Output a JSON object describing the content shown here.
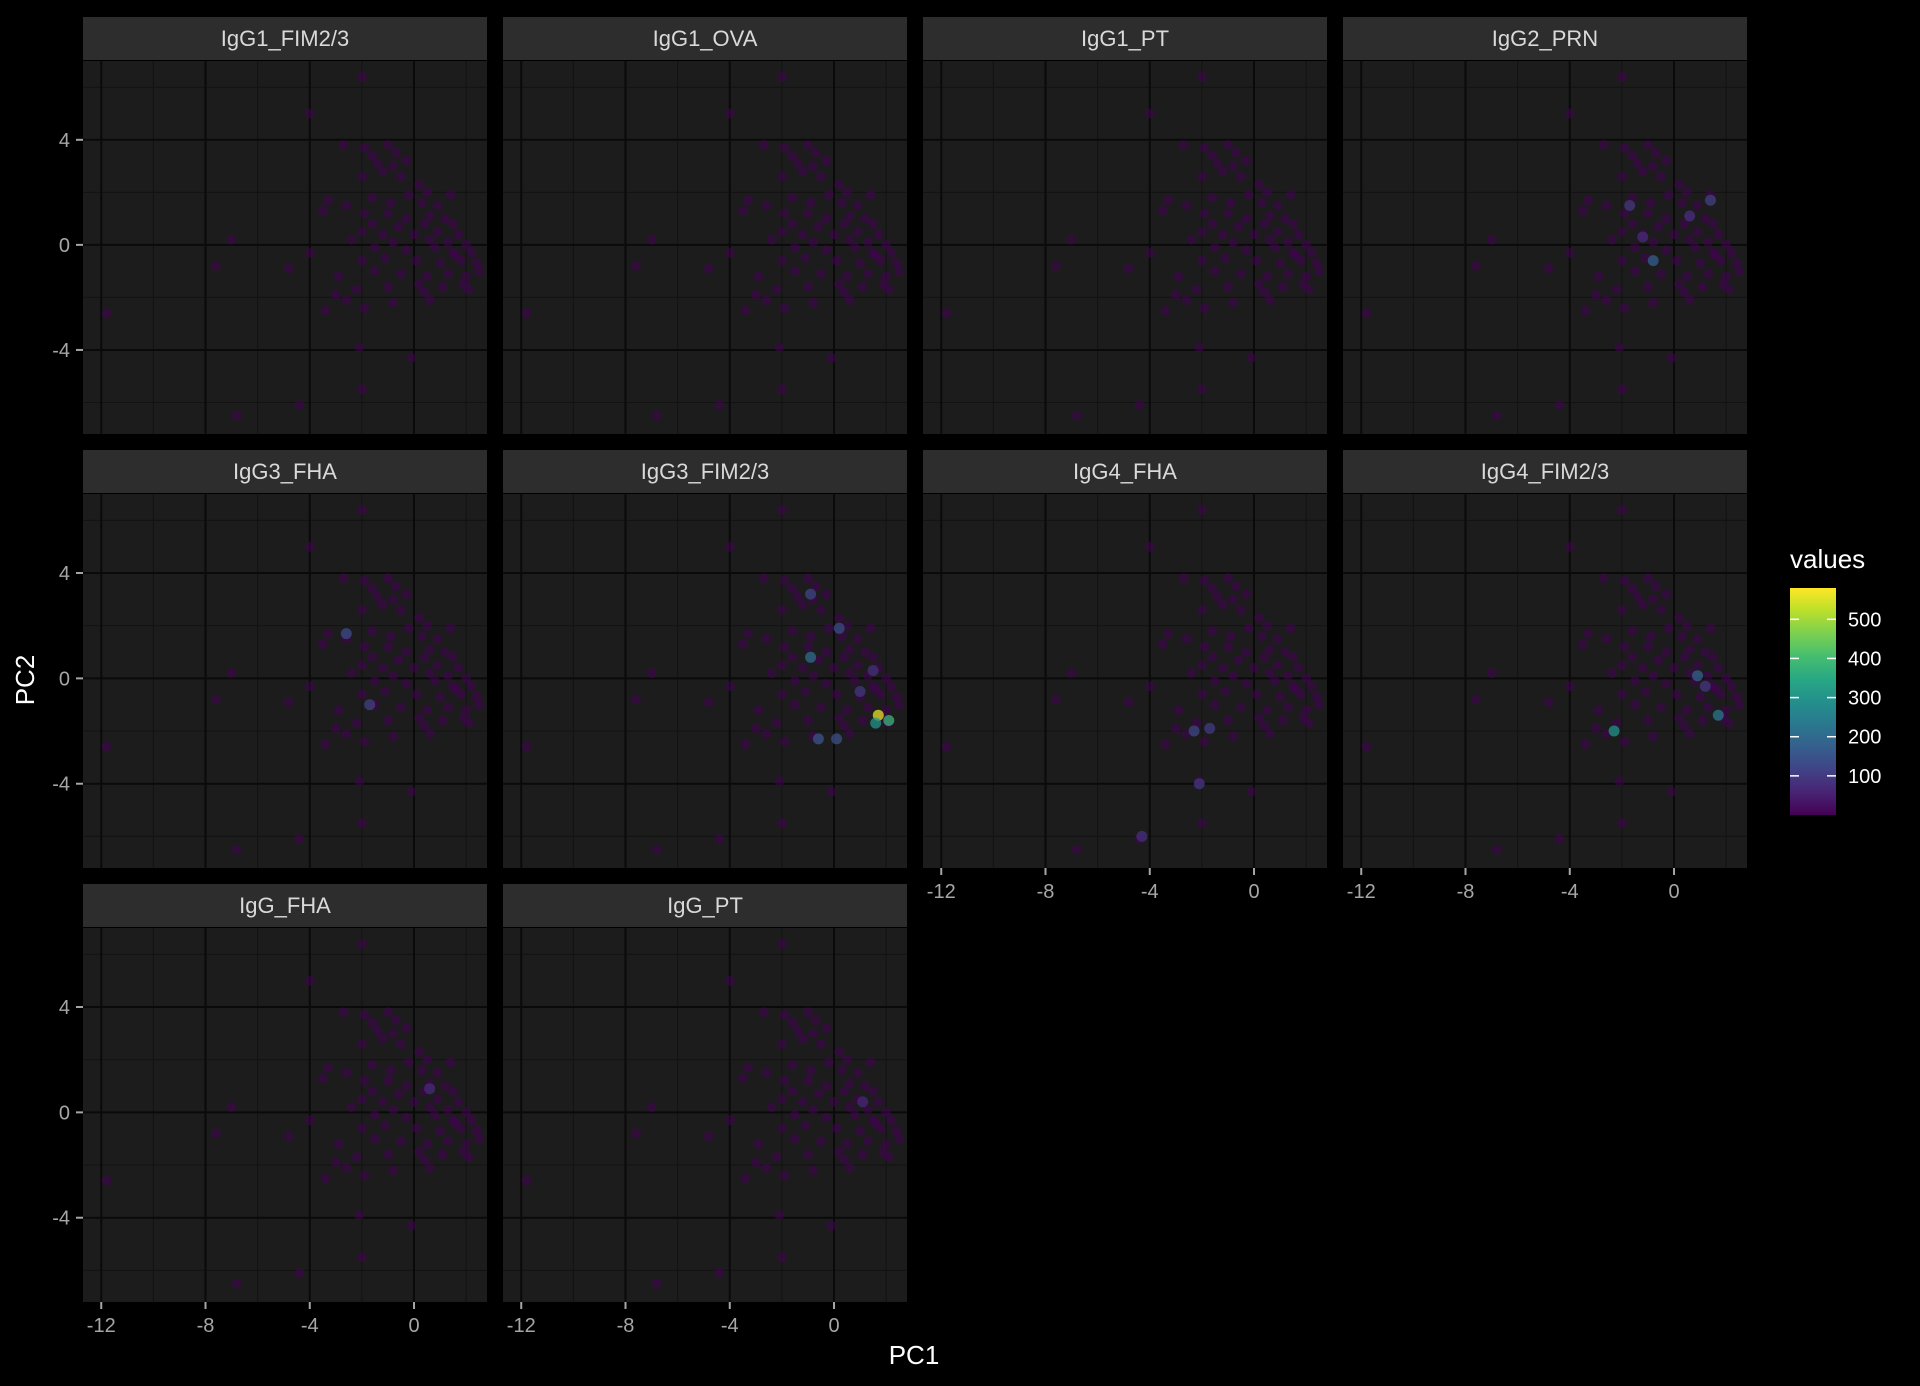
{
  "chart_data": {
    "type": "scatter",
    "faceted": true,
    "xlabel": "PC1",
    "ylabel": "PC2",
    "xlim": [
      -12.7,
      2.8
    ],
    "ylim": [
      -7.2,
      7.0
    ],
    "x_ticks": [
      -12,
      -8,
      -4,
      0
    ],
    "y_ticks": [
      -4,
      0,
      4
    ],
    "x_tick_labels": [
      "-12",
      "-8",
      "-4",
      "0"
    ],
    "y_tick_labels": [
      "-4",
      "0",
      "4"
    ],
    "grid": true,
    "legend": {
      "title": "values",
      "position": "right",
      "ticks": [
        100,
        200,
        300,
        400,
        500
      ],
      "tick_labels": [
        "100",
        "200",
        "300",
        "400",
        "500"
      ],
      "range": [
        0,
        580
      ],
      "colormap": "viridis"
    },
    "colors": {
      "background": "#000000",
      "panel": "#1c1c1c",
      "strip": "#2d2d2d",
      "grid_major": "#0a0a0a",
      "grid_minor": "#121212",
      "text": "#ffffff",
      "tick_text": "#a6a6a6",
      "strip_text": "#d9d9d9"
    },
    "point_alpha": 0.55,
    "base_points": [
      [
        -2.0,
        6.4
      ],
      [
        -4.0,
        5.0
      ],
      [
        -2.7,
        3.8
      ],
      [
        -1.9,
        3.7
      ],
      [
        -1.0,
        3.8
      ],
      [
        -1.6,
        3.4
      ],
      [
        -1.4,
        3.1
      ],
      [
        -0.7,
        3.5
      ],
      [
        -0.3,
        3.2
      ],
      [
        -0.8,
        3.0
      ],
      [
        -1.2,
        2.8
      ],
      [
        -2.0,
        2.6
      ],
      [
        -0.5,
        2.6
      ],
      [
        0.2,
        2.3
      ],
      [
        0.5,
        2.0
      ],
      [
        -0.2,
        1.9
      ],
      [
        -1.6,
        1.8
      ],
      [
        -3.3,
        1.7
      ],
      [
        -2.6,
        1.5
      ],
      [
        -0.9,
        1.6
      ],
      [
        0.3,
        1.6
      ],
      [
        0.9,
        1.5
      ],
      [
        -3.5,
        1.3
      ],
      [
        -1.9,
        1.2
      ],
      [
        -1.0,
        1.2
      ],
      [
        -0.3,
        1.0
      ],
      [
        0.6,
        1.1
      ],
      [
        1.2,
        1.0
      ],
      [
        -1.6,
        0.8
      ],
      [
        -0.6,
        0.7
      ],
      [
        0.4,
        0.8
      ],
      [
        1.5,
        0.8
      ],
      [
        -7.0,
        0.2
      ],
      [
        -2.0,
        0.5
      ],
      [
        -1.2,
        0.4
      ],
      [
        0.0,
        0.4
      ],
      [
        0.9,
        0.5
      ],
      [
        1.7,
        0.4
      ],
      [
        -2.4,
        0.2
      ],
      [
        -0.8,
        0.1
      ],
      [
        0.6,
        0.2
      ],
      [
        1.3,
        0.1
      ],
      [
        2.0,
        0.0
      ],
      [
        -1.5,
        -0.1
      ],
      [
        -0.3,
        -0.2
      ],
      [
        0.8,
        -0.1
      ],
      [
        1.5,
        -0.3
      ],
      [
        2.2,
        -0.3
      ],
      [
        -7.6,
        -0.8
      ],
      [
        -4.8,
        -0.9
      ],
      [
        -4.0,
        -0.3
      ],
      [
        -2.0,
        -0.6
      ],
      [
        -1.1,
        -0.5
      ],
      [
        0.1,
        -0.6
      ],
      [
        1.0,
        -0.7
      ],
      [
        1.8,
        -0.6
      ],
      [
        2.4,
        -0.7
      ],
      [
        -2.9,
        -1.2
      ],
      [
        -1.5,
        -1.0
      ],
      [
        -0.5,
        -1.1
      ],
      [
        0.5,
        -1.2
      ],
      [
        1.3,
        -1.1
      ],
      [
        2.0,
        -1.2
      ],
      [
        2.5,
        -1.0
      ],
      [
        -3.0,
        -1.9
      ],
      [
        -2.2,
        -1.7
      ],
      [
        -1.0,
        -1.6
      ],
      [
        0.2,
        -1.5
      ],
      [
        1.1,
        -1.6
      ],
      [
        1.9,
        -1.5
      ],
      [
        -3.4,
        -2.5
      ],
      [
        -2.6,
        -2.1
      ],
      [
        -1.9,
        -2.4
      ],
      [
        -0.8,
        -2.2
      ],
      [
        0.6,
        -2.1
      ],
      [
        -11.8,
        -2.6
      ],
      [
        -2.1,
        -3.9
      ],
      [
        -0.1,
        -4.3
      ],
      [
        -2.0,
        -5.5
      ],
      [
        -4.4,
        -6.1
      ],
      [
        -6.8,
        -6.5
      ],
      [
        1.6,
        -0.4
      ],
      [
        0.4,
        -1.8
      ],
      [
        1.4,
        1.9
      ],
      [
        2.1,
        -1.7
      ]
    ],
    "facets": [
      {
        "label": "IgG1_FIM2/3",
        "highlights": []
      },
      {
        "label": "IgG1_OVA",
        "highlights": []
      },
      {
        "label": "IgG1_PT",
        "highlights": []
      },
      {
        "label": "IgG2_PRN",
        "highlights": [
          {
            "x": -1.7,
            "y": 1.5,
            "value": 90
          },
          {
            "x": 0.6,
            "y": 1.1,
            "value": 80
          },
          {
            "x": -0.8,
            "y": -0.6,
            "value": 170
          },
          {
            "x": 1.4,
            "y": 1.7,
            "value": 110
          },
          {
            "x": -1.2,
            "y": 0.3,
            "value": 70
          }
        ]
      },
      {
        "label": "IgG3_FHA",
        "highlights": [
          {
            "x": -2.6,
            "y": 1.7,
            "value": 130
          },
          {
            "x": -1.7,
            "y": -1.0,
            "value": 110
          }
        ]
      },
      {
        "label": "IgG3_FIM2/3",
        "highlights": [
          {
            "x": 1.7,
            "y": -1.4,
            "value": 560
          },
          {
            "x": 2.1,
            "y": -1.6,
            "value": 390
          },
          {
            "x": 1.6,
            "y": -1.7,
            "value": 300
          },
          {
            "x": -0.9,
            "y": 3.2,
            "value": 120
          },
          {
            "x": -0.9,
            "y": 0.8,
            "value": 200
          },
          {
            "x": 0.2,
            "y": 1.9,
            "value": 130
          },
          {
            "x": -0.6,
            "y": -2.3,
            "value": 150
          },
          {
            "x": 0.1,
            "y": -2.3,
            "value": 140
          },
          {
            "x": 1.0,
            "y": -0.5,
            "value": 90
          },
          {
            "x": 1.5,
            "y": 0.3,
            "value": 80
          }
        ]
      },
      {
        "label": "IgG4_FHA",
        "highlights": [
          {
            "x": -2.3,
            "y": -2.0,
            "value": 120
          },
          {
            "x": -1.7,
            "y": -1.9,
            "value": 100
          },
          {
            "x": -2.1,
            "y": -4.0,
            "value": 90
          },
          {
            "x": -4.3,
            "y": -6.0,
            "value": 80
          }
        ]
      },
      {
        "label": "IgG4_FIM2/3",
        "highlights": [
          {
            "x": -2.3,
            "y": -2.0,
            "value": 300
          },
          {
            "x": 0.9,
            "y": 0.1,
            "value": 180
          },
          {
            "x": 1.7,
            "y": -1.4,
            "value": 230
          },
          {
            "x": 1.2,
            "y": -0.3,
            "value": 90
          }
        ]
      },
      {
        "label": "IgG_FHA",
        "highlights": [
          {
            "x": 0.6,
            "y": 0.9,
            "value": 70
          }
        ]
      },
      {
        "label": "IgG_PT",
        "highlights": [
          {
            "x": 1.1,
            "y": 0.4,
            "value": 60
          }
        ]
      }
    ]
  }
}
